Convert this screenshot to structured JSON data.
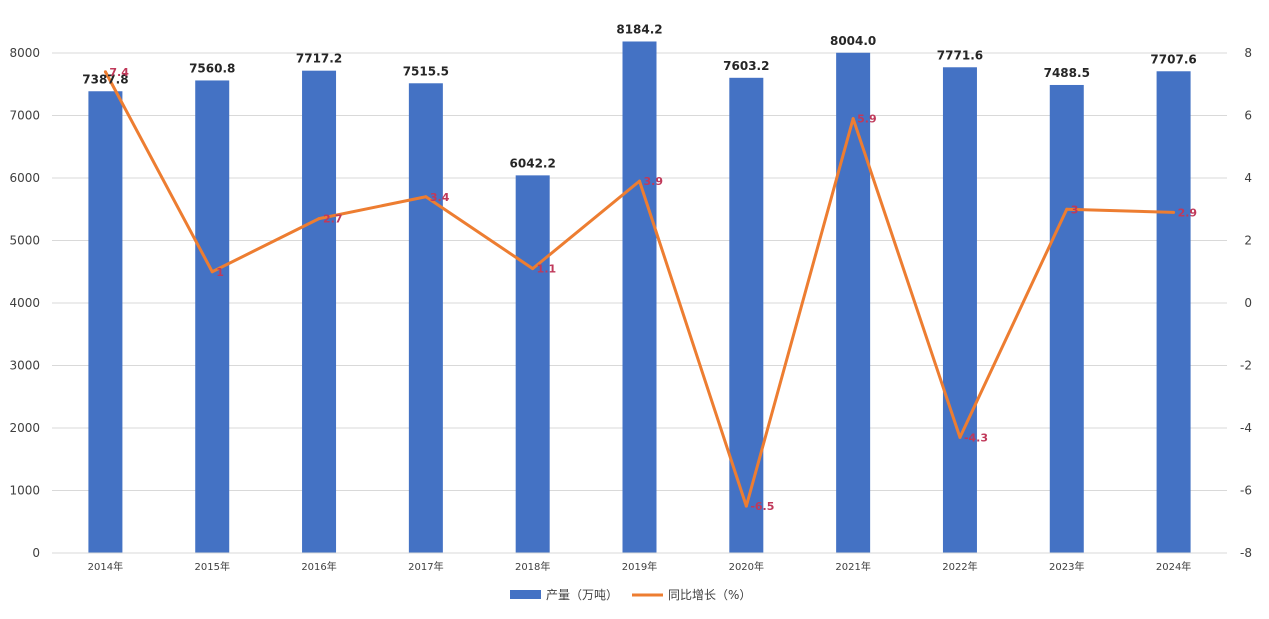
{
  "chart_data": {
    "type": "bar",
    "categories": [
      "2014年",
      "2015年",
      "2016年",
      "2017年",
      "2018年",
      "2019年",
      "2020年",
      "2021年",
      "2022年",
      "2023年",
      "2024年"
    ],
    "series": [
      {
        "name": "产量（万吨）",
        "type": "bar",
        "axis": "left",
        "values": [
          7387.8,
          7560.8,
          7717.2,
          7515.5,
          6042.2,
          8184.2,
          7603.2,
          8004.0,
          7771.6,
          7488.5,
          7707.6
        ],
        "labels": [
          "7387.8",
          "7560.8",
          "7717.2",
          "7515.5",
          "6042.2",
          "8184.2",
          "7603.2",
          "8004.0",
          "7771.6",
          "7488.5",
          "7707.6"
        ]
      },
      {
        "name": "同比增长（%）",
        "type": "line",
        "axis": "right",
        "values": [
          7.4,
          1,
          2.7,
          3.4,
          1.1,
          3.9,
          -6.5,
          5.9,
          -4.3,
          3,
          2.9
        ],
        "labels": [
          "7.4",
          "1",
          "2.7",
          "3.4",
          "1.1",
          "3.9",
          "-6.5",
          "5.9",
          "-4.3",
          "3",
          "2.9"
        ]
      }
    ],
    "y_left": {
      "range": [
        0,
        8000
      ],
      "ticks": [
        "0",
        "1000",
        "2000",
        "3000",
        "4000",
        "5000",
        "6000",
        "7000",
        "8000"
      ]
    },
    "y_right": {
      "range": [
        -8,
        8
      ],
      "ticks": [
        "-8",
        "-6",
        "-4",
        "-2",
        "0",
        "2",
        "4",
        "6",
        "8"
      ]
    },
    "grid": true,
    "legend_position": "bottom",
    "colors": {
      "bar": "#4472C4",
      "line": "#ED7D31",
      "line_label": "#C0395A",
      "grid": "#D9D9D9"
    }
  }
}
